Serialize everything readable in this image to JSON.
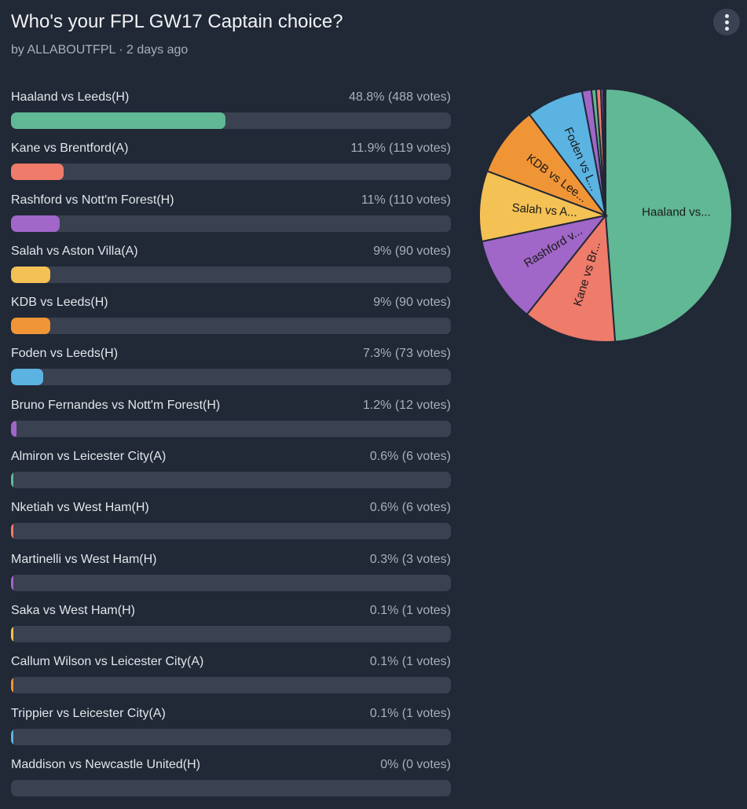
{
  "header": {
    "title": "Who's your FPL GW17 Captain choice?",
    "meta": "by ALLABOUTFPL · 2 days ago",
    "menu_icon": "more-vertical-icon"
  },
  "poll": {
    "options": [
      {
        "label": "Haaland vs Leeds(H)",
        "result": "48.8% (488 votes)",
        "pct": 48.8,
        "votes": 488,
        "color": "#61b894",
        "pie_label": "Haaland vs..."
      },
      {
        "label": "Kane vs Brentford(A)",
        "result": "11.9% (119 votes)",
        "pct": 11.9,
        "votes": 119,
        "color": "#ef7b6a",
        "pie_label": "Kane vs Br..."
      },
      {
        "label": "Rashford vs Nott'm Forest(H)",
        "result": "11% (110 votes)",
        "pct": 11,
        "votes": 110,
        "color": "#a066c8",
        "pie_label": "Rashford v..."
      },
      {
        "label": "Salah vs Aston Villa(A)",
        "result": "9% (90 votes)",
        "pct": 9,
        "votes": 90,
        "color": "#f4c155",
        "pie_label": "Salah vs A..."
      },
      {
        "label": "KDB vs Leeds(H)",
        "result": "9% (90 votes)",
        "pct": 9,
        "votes": 90,
        "color": "#f09536",
        "pie_label": "KDB vs Lee..."
      },
      {
        "label": "Foden vs Leeds(H)",
        "result": "7.3% (73 votes)",
        "pct": 7.3,
        "votes": 73,
        "color": "#5bb3e2",
        "pie_label": "Foden vs L..."
      },
      {
        "label": "Bruno Fernandes vs Nott'm Forest(H)",
        "result": "1.2% (12 votes)",
        "pct": 1.2,
        "votes": 12,
        "color": "#a066c8",
        "pie_label": ""
      },
      {
        "label": "Almiron vs Leicester City(A)",
        "result": "0.6% (6 votes)",
        "pct": 0.6,
        "votes": 6,
        "color": "#61b894",
        "pie_label": ""
      },
      {
        "label": "Nketiah vs West Ham(H)",
        "result": "0.6% (6 votes)",
        "pct": 0.6,
        "votes": 6,
        "color": "#ef7b6a",
        "pie_label": ""
      },
      {
        "label": "Martinelli vs West Ham(H)",
        "result": "0.3% (3 votes)",
        "pct": 0.3,
        "votes": 3,
        "color": "#a066c8",
        "pie_label": ""
      },
      {
        "label": "Saka vs West Ham(H)",
        "result": "0.1% (1 votes)",
        "pct": 0.1,
        "votes": 1,
        "color": "#f4c155",
        "pie_label": ""
      },
      {
        "label": "Callum Wilson vs Leicester City(A)",
        "result": "0.1% (1 votes)",
        "pct": 0.1,
        "votes": 1,
        "color": "#f09536",
        "pie_label": ""
      },
      {
        "label": "Trippier vs Leicester City(A)",
        "result": "0.1% (1 votes)",
        "pct": 0.1,
        "votes": 1,
        "color": "#5bb3e2",
        "pie_label": ""
      },
      {
        "label": "Maddison vs Newcastle United(H)",
        "result": "0% (0 votes)",
        "pct": 0,
        "votes": 0,
        "color": "#61b894",
        "pie_label": ""
      }
    ]
  },
  "chart_data": {
    "type": "pie",
    "title": "Who's your FPL GW17 Captain choice?",
    "categories": [
      "Haaland vs Leeds(H)",
      "Kane vs Brentford(A)",
      "Rashford vs Nott'm Forest(H)",
      "Salah vs Aston Villa(A)",
      "KDB vs Leeds(H)",
      "Foden vs Leeds(H)",
      "Bruno Fernandes vs Nott'm Forest(H)",
      "Almiron vs Leicester City(A)",
      "Nketiah vs West Ham(H)",
      "Martinelli vs West Ham(H)",
      "Saka vs West Ham(H)",
      "Callum Wilson vs Leicester City(A)",
      "Trippier vs Leicester City(A)",
      "Maddison vs Newcastle United(H)"
    ],
    "values": [
      488,
      119,
      110,
      90,
      90,
      73,
      12,
      6,
      6,
      3,
      1,
      1,
      1,
      0
    ],
    "percentages": [
      48.8,
      11.9,
      11,
      9,
      9,
      7.3,
      1.2,
      0.6,
      0.6,
      0.3,
      0.1,
      0.1,
      0.1,
      0
    ],
    "slice_labels": [
      "Haaland vs...",
      "Kane vs Br...",
      "Rashford v...",
      "Salah vs A...",
      "KDB vs Lee...",
      "Foden vs L..."
    ],
    "legend": "none"
  }
}
